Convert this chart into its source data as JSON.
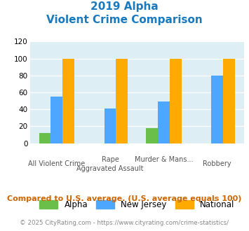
{
  "title_line1": "2019 Alpha",
  "title_line2": "Violent Crime Comparison",
  "cat_labels_row1": [
    "",
    "Rape",
    "Murder & Mans...",
    ""
  ],
  "cat_labels_row2": [
    "All Violent Crime",
    "Aggravated Assault",
    "",
    "Robbery"
  ],
  "alpha_values": [
    12,
    0,
    18,
    0
  ],
  "nj_values": [
    55,
    41,
    49,
    80
  ],
  "national_values": [
    100,
    100,
    100,
    100
  ],
  "alpha_color": "#6abf4b",
  "nj_color": "#4da6ff",
  "national_color": "#ffaa00",
  "ylim": [
    0,
    120
  ],
  "yticks": [
    0,
    20,
    40,
    60,
    80,
    100,
    120
  ],
  "bg_color": "#ddeef4",
  "title_color": "#1a7abf",
  "footer_text": "Compared to U.S. average. (U.S. average equals 100)",
  "footer_color": "#cc6600",
  "copyright_text": "© 2025 CityRating.com - https://www.cityrating.com/crime-statistics/",
  "copyright_color": "#888888",
  "legend_labels": [
    "Alpha",
    "New Jersey",
    "National"
  ],
  "bar_width": 0.22
}
